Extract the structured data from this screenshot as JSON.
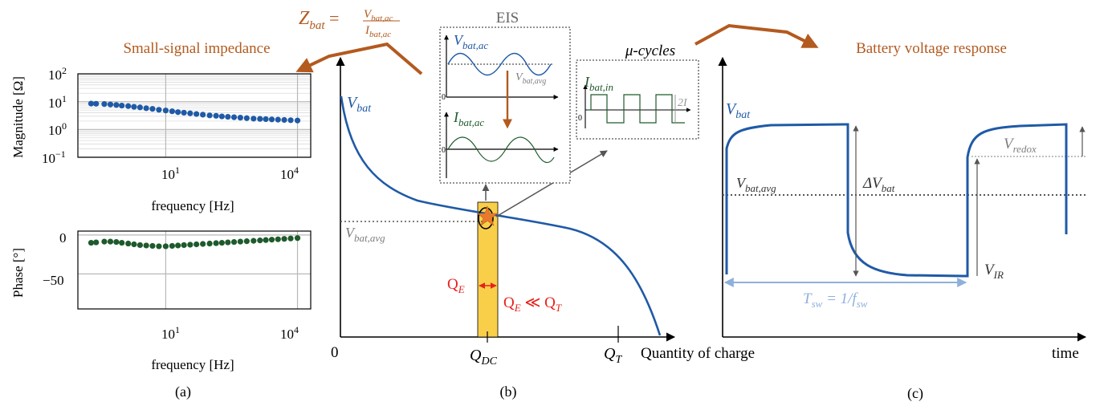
{
  "colors": {
    "blue": "#1f5aa6",
    "green": "#1e5a2c",
    "orange": "#b35a1f",
    "red": "#e8201c",
    "gray": "#7f7f7f",
    "lightblue": "#8fb0dc",
    "yellow": "#f9cf4a"
  },
  "impedance_eq": {
    "lhs": "Z",
    "lhs_sub": "bat",
    "num": "V",
    "num_sub": "bat,ac",
    "den": "I",
    "den_sub": "bat,ac"
  },
  "panel_a": {
    "title": "Small-signal impedance",
    "caption": "(a)",
    "magnitude": {
      "ylabel": "Magnitude [Ω]",
      "xlabel": "frequency [Hz]",
      "yticks": [
        {
          "base": "10",
          "exp": "2"
        },
        {
          "base": "10",
          "exp": "1"
        },
        {
          "base": "10",
          "exp": "0"
        },
        {
          "base": "10",
          "exp": "−1"
        }
      ],
      "xticks": [
        {
          "base": "10",
          "exp": "1"
        },
        {
          "base": "10",
          "exp": "4"
        }
      ]
    },
    "phase": {
      "ylabel": "Phase [°]",
      "xlabel": "frequency [Hz]",
      "yticks": [
        "0",
        "−50"
      ],
      "xticks": [
        {
          "base": "10",
          "exp": "1"
        },
        {
          "base": "10",
          "exp": "4"
        }
      ]
    }
  },
  "panel_b": {
    "caption": "(b)",
    "vbat": "V",
    "vbat_sub": "bat",
    "vbatavg": "V",
    "vbatavg_sub": "bat,avg",
    "origin": "0",
    "qdc": "Q",
    "qdc_sub": "DC",
    "qt": "Q",
    "qt_sub": "T",
    "xlabel": "Quantity of charge",
    "qe": "Q",
    "qe_sub": "E",
    "qe_rel": "Q",
    "qe_rel_sub1": "E",
    "qe_rel_mid": " ≪ Q",
    "qe_rel_sub2": "T",
    "eis_title": "EIS",
    "eis_v": "V",
    "eis_v_sub": "bat,ac",
    "eis_vavg": "V",
    "eis_vavg_sub": "bat,avg",
    "eis_i": "I",
    "eis_i_sub": "bat,ac",
    "eis_zero1": "0",
    "eis_zero2": "0",
    "mu_title": "μ-cycles",
    "mu_i": "I",
    "mu_i_sub": "bat,in",
    "mu_zero": "0",
    "mu_amp": "2I"
  },
  "panel_c": {
    "title": "Battery voltage response",
    "caption": "(c)",
    "vbat": "V",
    "vbat_sub": "bat",
    "vbatavg": "V",
    "vbatavg_sub": "bat,avg",
    "dv": "ΔV",
    "dv_sub": "bat",
    "vredox": "V",
    "vredox_sub": "redox",
    "vir": "V",
    "vir_sub": "IR",
    "tsw": "T",
    "tsw_sub": "sw",
    "tsw_eq": " = 1/f",
    "tsw_sub2": "sw",
    "xlabel": "time"
  },
  "chart_data": [
    {
      "type": "scatter",
      "title": "",
      "xlabel": "frequency [Hz]",
      "ylabel": "Magnitude [Ω]",
      "xscale": "log",
      "yscale": "log",
      "xlim": [
        0.1,
        20000
      ],
      "ylim": [
        0.1,
        100
      ],
      "grid": true,
      "series": [
        {
          "x": [
            0.2,
            0.26,
            0.4,
            0.55,
            0.75,
            1.0,
            1.4,
            1.9,
            2.6,
            3.6,
            5,
            7,
            10,
            14,
            19,
            26,
            36,
            50,
            70,
            100,
            140,
            190,
            260,
            360,
            500,
            700,
            1000,
            1400,
            1900,
            2600,
            3600,
            5000,
            7000,
            10000
          ],
          "y": [
            8.5,
            8.4,
            8.2,
            7.9,
            7.6,
            7.2,
            6.9,
            6.5,
            6.2,
            5.8,
            5.5,
            5.1,
            4.8,
            4.5,
            4.2,
            4.0,
            3.8,
            3.6,
            3.4,
            3.2,
            3.1,
            2.95,
            2.85,
            2.75,
            2.65,
            2.55,
            2.45,
            2.4,
            2.35,
            2.3,
            2.25,
            2.2,
            2.15,
            2.1
          ]
        }
      ]
    },
    {
      "type": "scatter",
      "title": "",
      "xlabel": "frequency [Hz]",
      "ylabel": "Phase [°]",
      "xscale": "log",
      "xlim": [
        0.1,
        20000
      ],
      "ylim": [
        -95,
        5
      ],
      "grid": true,
      "series": [
        {
          "x": [
            0.2,
            0.26,
            0.4,
            0.55,
            0.75,
            1.0,
            1.4,
            1.9,
            2.6,
            3.6,
            5,
            7,
            10,
            14,
            19,
            26,
            36,
            50,
            70,
            100,
            140,
            190,
            260,
            360,
            500,
            700,
            1000,
            1400,
            1900,
            2600,
            3600,
            5000,
            7000,
            10000
          ],
          "y": [
            -10,
            -9.5,
            -8.5,
            -8.5,
            -9,
            -10,
            -11,
            -12,
            -13,
            -13.5,
            -14,
            -14.5,
            -14.5,
            -14,
            -13.5,
            -13,
            -12.5,
            -12,
            -11.5,
            -11,
            -10.5,
            -10,
            -9.5,
            -9,
            -8.5,
            -8,
            -7.5,
            -7,
            -6.5,
            -6,
            -5.5,
            -5,
            -4.5,
            -4
          ]
        }
      ]
    }
  ]
}
